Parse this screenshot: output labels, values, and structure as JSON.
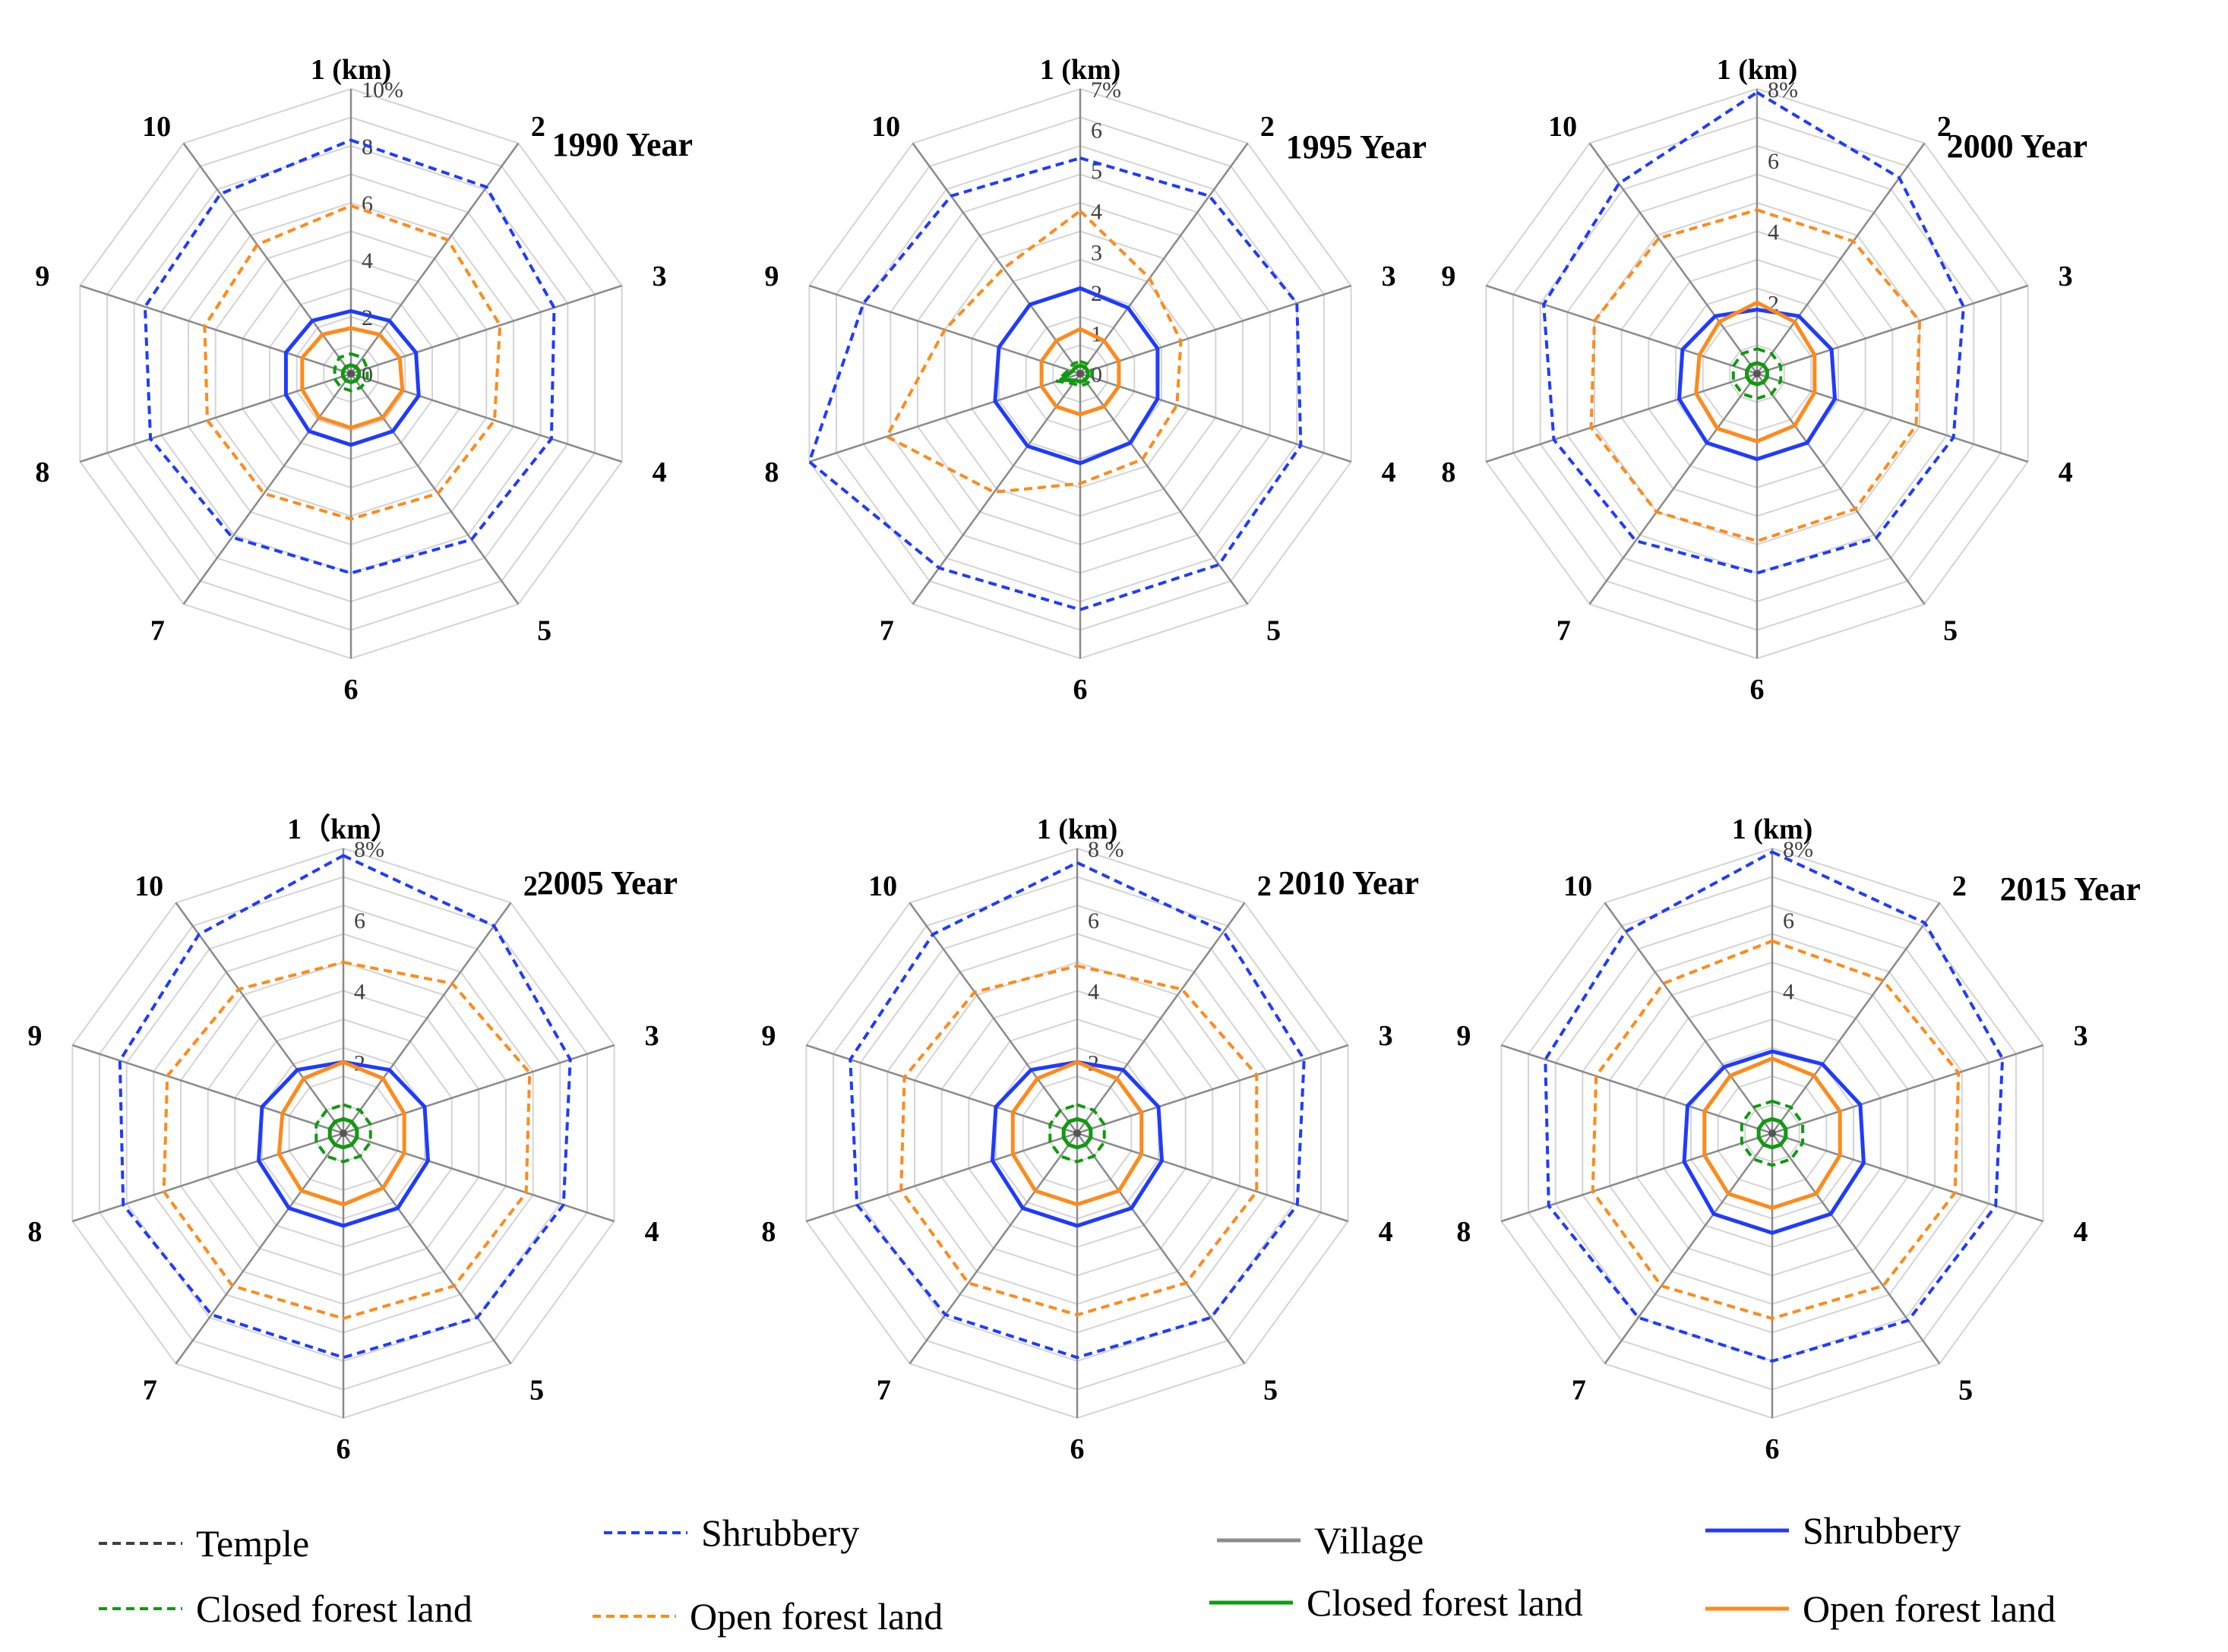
{
  "figure": {
    "legend": [
      {
        "label": "Temple",
        "color": "#404040",
        "dash": "dashed"
      },
      {
        "label": "Shrubbery",
        "color": "#1f3bff",
        "dash": "dashed"
      },
      {
        "label": "Village",
        "color": "#8c8c8c",
        "dash": "solid"
      },
      {
        "label": "Shrubbery",
        "color": "#1f3bff",
        "dash": "solid"
      },
      {
        "label": "Closed forest land",
        "color": "#109a10",
        "dash": "dashed"
      },
      {
        "label": "Open forest land",
        "color": "#ff8a1a",
        "dash": "dashed"
      },
      {
        "label": "Closed forest land",
        "color": "#109a10",
        "dash": "solid"
      },
      {
        "label": "Open forest land",
        "color": "#ff8a1a",
        "dash": "solid"
      }
    ]
  },
  "chart_data": [
    {
      "type": "radar",
      "title": "1990 Year",
      "categories": [
        "1 (km)",
        "2",
        "3",
        "4",
        "5",
        "6",
        "7",
        "8",
        "9",
        "10"
      ],
      "max": 10,
      "ticks": [
        "10%",
        "8",
        "6",
        "4",
        "2",
        "0"
      ],
      "tick_values": [
        10,
        8,
        6,
        4,
        2,
        0
      ],
      "series": [
        {
          "name": "Shrubbery",
          "group": "Temple",
          "color": "#1f3bff",
          "dash": "dashed",
          "values": [
            8.2,
            8.1,
            7.5,
            7.4,
            7.2,
            7.0,
            7.1,
            7.4,
            7.6,
            7.8
          ]
        },
        {
          "name": "Open forest land",
          "group": "Temple",
          "color": "#ff8a1a",
          "dash": "dashed",
          "values": [
            5.9,
            5.8,
            5.5,
            5.3,
            5.2,
            5.1,
            5.2,
            5.3,
            5.4,
            5.6
          ]
        },
        {
          "name": "Closed forest land",
          "group": "Temple",
          "color": "#109a10",
          "dash": "dashed",
          "values": [
            0.7,
            0.7,
            0.6,
            0.6,
            0.6,
            0.6,
            0.6,
            0.6,
            0.6,
            0.7
          ]
        },
        {
          "name": "Shrubbery",
          "group": "Village",
          "color": "#1f3bff",
          "dash": "solid",
          "values": [
            2.2,
            2.3,
            2.4,
            2.5,
            2.5,
            2.5,
            2.5,
            2.4,
            2.4,
            2.3
          ]
        },
        {
          "name": "Open forest land",
          "group": "Village",
          "color": "#ff8a1a",
          "dash": "solid",
          "values": [
            1.6,
            1.7,
            1.8,
            1.9,
            1.9,
            1.9,
            1.9,
            1.8,
            1.8,
            1.7
          ]
        },
        {
          "name": "Closed forest land",
          "group": "Village",
          "color": "#109a10",
          "dash": "solid",
          "values": [
            0.3,
            0.3,
            0.3,
            0.3,
            0.3,
            0.3,
            0.3,
            0.3,
            0.3,
            0.3
          ]
        }
      ]
    },
    {
      "type": "radar",
      "title": "1995 Year",
      "categories": [
        "1 (km)",
        "2",
        "3",
        "4",
        "5",
        "6",
        "7",
        "8",
        "9",
        "10"
      ],
      "max": 7,
      "ticks": [
        "7%",
        "6",
        "5",
        "4",
        "3",
        "2",
        "1",
        "0"
      ],
      "tick_values": [
        7,
        6,
        5,
        4,
        3,
        2,
        1,
        0
      ],
      "series": [
        {
          "name": "Shrubbery",
          "group": "Temple",
          "color": "#1f3bff",
          "dash": "dashed",
          "values": [
            5.3,
            5.4,
            5.6,
            5.7,
            5.8,
            5.8,
            5.9,
            7.0,
            5.6,
            5.4
          ]
        },
        {
          "name": "Open forest land",
          "group": "Temple",
          "color": "#ff8a1a",
          "dash": "dashed",
          "values": [
            4.0,
            2.9,
            2.6,
            2.5,
            2.6,
            2.7,
            3.6,
            5.0,
            3.5,
            3.2
          ]
        },
        {
          "name": "Closed forest land",
          "group": "Temple",
          "color": "#109a10",
          "dash": "dashed",
          "values": [
            0.3,
            0.3,
            0.3,
            0.3,
            0.3,
            0.3,
            0.3,
            0.6,
            0.3,
            0.3
          ]
        },
        {
          "name": "Shrubbery",
          "group": "Village",
          "color": "#1f3bff",
          "dash": "solid",
          "values": [
            2.1,
            2.0,
            2.0,
            2.0,
            2.1,
            2.2,
            2.2,
            2.2,
            2.1,
            2.1
          ]
        },
        {
          "name": "Open forest land",
          "group": "Village",
          "color": "#ff8a1a",
          "dash": "solid",
          "values": [
            1.1,
            1.0,
            1.0,
            1.0,
            1.0,
            1.0,
            1.0,
            1.0,
            1.0,
            1.0
          ]
        },
        {
          "name": "Closed forest land",
          "group": "Village",
          "color": "#109a10",
          "dash": "solid",
          "values": [
            0.2,
            0.2,
            0.2,
            0.2,
            0.2,
            0.2,
            0.2,
            0.5,
            0.2,
            0.2
          ]
        }
      ]
    },
    {
      "type": "radar",
      "title": "2000 Year",
      "categories": [
        "1 (km)",
        "2",
        "3",
        "4",
        "5",
        "6",
        "7",
        "8",
        "9",
        "10"
      ],
      "max": 8,
      "ticks": [
        "8%",
        "6",
        "4",
        "2"
      ],
      "tick_values": [
        8,
        6,
        4,
        2
      ],
      "series": [
        {
          "name": "Shrubbery",
          "group": "Temple",
          "color": "#1f3bff",
          "dash": "dashed",
          "values": [
            7.9,
            6.8,
            6.1,
            5.8,
            5.7,
            5.6,
            5.8,
            6.0,
            6.3,
            6.6
          ]
        },
        {
          "name": "Open forest land",
          "group": "Temple",
          "color": "#ff8a1a",
          "dash": "dashed",
          "values": [
            4.6,
            4.6,
            4.8,
            4.7,
            4.7,
            4.7,
            4.8,
            4.9,
            4.8,
            4.7
          ]
        },
        {
          "name": "Closed forest land",
          "group": "Temple",
          "color": "#109a10",
          "dash": "dashed",
          "values": [
            0.7,
            0.7,
            0.7,
            0.7,
            0.7,
            0.7,
            0.7,
            0.7,
            0.7,
            0.7
          ]
        },
        {
          "name": "Shrubbery",
          "group": "Village",
          "color": "#1f3bff",
          "dash": "solid",
          "values": [
            1.8,
            2.0,
            2.2,
            2.3,
            2.4,
            2.4,
            2.4,
            2.3,
            2.2,
            2.0
          ]
        },
        {
          "name": "Open forest land",
          "group": "Village",
          "color": "#ff8a1a",
          "dash": "solid",
          "values": [
            2.0,
            1.8,
            1.7,
            1.7,
            1.8,
            1.9,
            1.9,
            1.8,
            1.7,
            1.8
          ]
        },
        {
          "name": "Closed forest land",
          "group": "Village",
          "color": "#109a10",
          "dash": "solid",
          "values": [
            0.3,
            0.3,
            0.3,
            0.3,
            0.3,
            0.3,
            0.3,
            0.3,
            0.3,
            0.3
          ]
        }
      ]
    },
    {
      "type": "radar",
      "title": "2005 Year",
      "categories": [
        "1（km）",
        "2",
        "3",
        "4",
        "5",
        "6",
        "7",
        "8",
        "9",
        "10"
      ],
      "max": 8,
      "ticks": [
        "8%",
        "6",
        "4",
        "2"
      ],
      "tick_values": [
        8,
        6,
        4,
        2
      ],
      "series": [
        {
          "name": "Shrubbery",
          "group": "Temple",
          "color": "#1f3bff",
          "dash": "dashed",
          "values": [
            7.8,
            7.2,
            6.7,
            6.5,
            6.4,
            6.3,
            6.3,
            6.5,
            6.6,
            6.9
          ]
        },
        {
          "name": "Open forest land",
          "group": "Temple",
          "color": "#ff8a1a",
          "dash": "dashed",
          "values": [
            4.8,
            5.2,
            5.5,
            5.4,
            5.3,
            5.2,
            5.3,
            5.3,
            5.2,
            5.0
          ]
        },
        {
          "name": "Closed forest land",
          "group": "Temple",
          "color": "#109a10",
          "dash": "dashed",
          "values": [
            0.8,
            0.8,
            0.8,
            0.8,
            0.8,
            0.8,
            0.8,
            0.8,
            0.8,
            0.8
          ]
        },
        {
          "name": "Shrubbery",
          "group": "Village",
          "color": "#1f3bff",
          "dash": "solid",
          "values": [
            2.0,
            2.2,
            2.4,
            2.5,
            2.6,
            2.6,
            2.6,
            2.5,
            2.4,
            2.2
          ]
        },
        {
          "name": "Open forest land",
          "group": "Village",
          "color": "#ff8a1a",
          "dash": "solid",
          "values": [
            2.0,
            1.9,
            1.8,
            1.8,
            1.9,
            2.0,
            2.0,
            1.9,
            1.8,
            1.9
          ]
        },
        {
          "name": "Closed forest land",
          "group": "Village",
          "color": "#109a10",
          "dash": "solid",
          "values": [
            0.4,
            0.4,
            0.4,
            0.4,
            0.4,
            0.4,
            0.4,
            0.4,
            0.4,
            0.4
          ]
        }
      ]
    },
    {
      "type": "radar",
      "title": "2010 Year",
      "categories": [
        "1 (km)",
        "2",
        "3",
        "4",
        "5",
        "6",
        "7",
        "8",
        "9",
        "10"
      ],
      "max": 8,
      "ticks": [
        "8 %",
        "6",
        "4",
        "2"
      ],
      "tick_values": [
        8,
        6,
        4,
        2
      ],
      "series": [
        {
          "name": "Shrubbery",
          "group": "Temple",
          "color": "#1f3bff",
          "dash": "dashed",
          "values": [
            7.6,
            7.0,
            6.7,
            6.5,
            6.4,
            6.3,
            6.3,
            6.5,
            6.7,
            6.9
          ]
        },
        {
          "name": "Open forest land",
          "group": "Temple",
          "color": "#ff8a1a",
          "dash": "dashed",
          "values": [
            4.7,
            5.0,
            5.3,
            5.3,
            5.2,
            5.1,
            5.2,
            5.2,
            5.1,
            4.9
          ]
        },
        {
          "name": "Closed forest land",
          "group": "Temple",
          "color": "#109a10",
          "dash": "dashed",
          "values": [
            0.8,
            0.8,
            0.8,
            0.8,
            0.8,
            0.8,
            0.8,
            0.8,
            0.8,
            0.8
          ]
        },
        {
          "name": "Shrubbery",
          "group": "Village",
          "color": "#1f3bff",
          "dash": "solid",
          "values": [
            2.0,
            2.2,
            2.4,
            2.5,
            2.6,
            2.6,
            2.6,
            2.5,
            2.4,
            2.2
          ]
        },
        {
          "name": "Open forest land",
          "group": "Village",
          "color": "#ff8a1a",
          "dash": "solid",
          "values": [
            2.0,
            1.9,
            1.9,
            1.9,
            2.0,
            2.0,
            2.0,
            1.9,
            1.9,
            1.9
          ]
        },
        {
          "name": "Closed forest land",
          "group": "Village",
          "color": "#109a10",
          "dash": "solid",
          "values": [
            0.4,
            0.4,
            0.4,
            0.4,
            0.4,
            0.4,
            0.4,
            0.4,
            0.4,
            0.4
          ]
        }
      ]
    },
    {
      "type": "radar",
      "title": "2015 Year",
      "categories": [
        "1 (km)",
        "2",
        "3",
        "4",
        "5",
        "6",
        "7",
        "8",
        "9",
        "10"
      ],
      "max": 8,
      "ticks": [
        "8%",
        "6",
        "4"
      ],
      "tick_values": [
        8,
        6,
        4
      ],
      "series": [
        {
          "name": "Shrubbery",
          "group": "Temple",
          "color": "#1f3bff",
          "dash": "dashed",
          "values": [
            7.9,
            7.3,
            6.8,
            6.6,
            6.5,
            6.4,
            6.4,
            6.6,
            6.7,
            7.0
          ]
        },
        {
          "name": "Open forest land",
          "group": "Temple",
          "color": "#ff8a1a",
          "dash": "dashed",
          "values": [
            5.4,
            5.3,
            5.5,
            5.4,
            5.3,
            5.2,
            5.3,
            5.3,
            5.2,
            5.2
          ]
        },
        {
          "name": "Closed forest land",
          "group": "Temple",
          "color": "#109a10",
          "dash": "dashed",
          "values": [
            0.9,
            0.9,
            0.9,
            0.9,
            0.9,
            0.9,
            0.9,
            0.9,
            0.9,
            0.9
          ]
        },
        {
          "name": "Shrubbery",
          "group": "Village",
          "color": "#1f3bff",
          "dash": "solid",
          "values": [
            2.3,
            2.4,
            2.6,
            2.7,
            2.8,
            2.8,
            2.8,
            2.6,
            2.5,
            2.3
          ]
        },
        {
          "name": "Open forest land",
          "group": "Village",
          "color": "#ff8a1a",
          "dash": "solid",
          "values": [
            2.1,
            2.0,
            2.0,
            2.0,
            2.1,
            2.1,
            2.1,
            2.0,
            2.0,
            2.0
          ]
        },
        {
          "name": "Closed forest land",
          "group": "Village",
          "color": "#109a10",
          "dash": "solid",
          "values": [
            0.4,
            0.4,
            0.4,
            0.4,
            0.4,
            0.4,
            0.4,
            0.4,
            0.4,
            0.4
          ]
        }
      ]
    }
  ]
}
